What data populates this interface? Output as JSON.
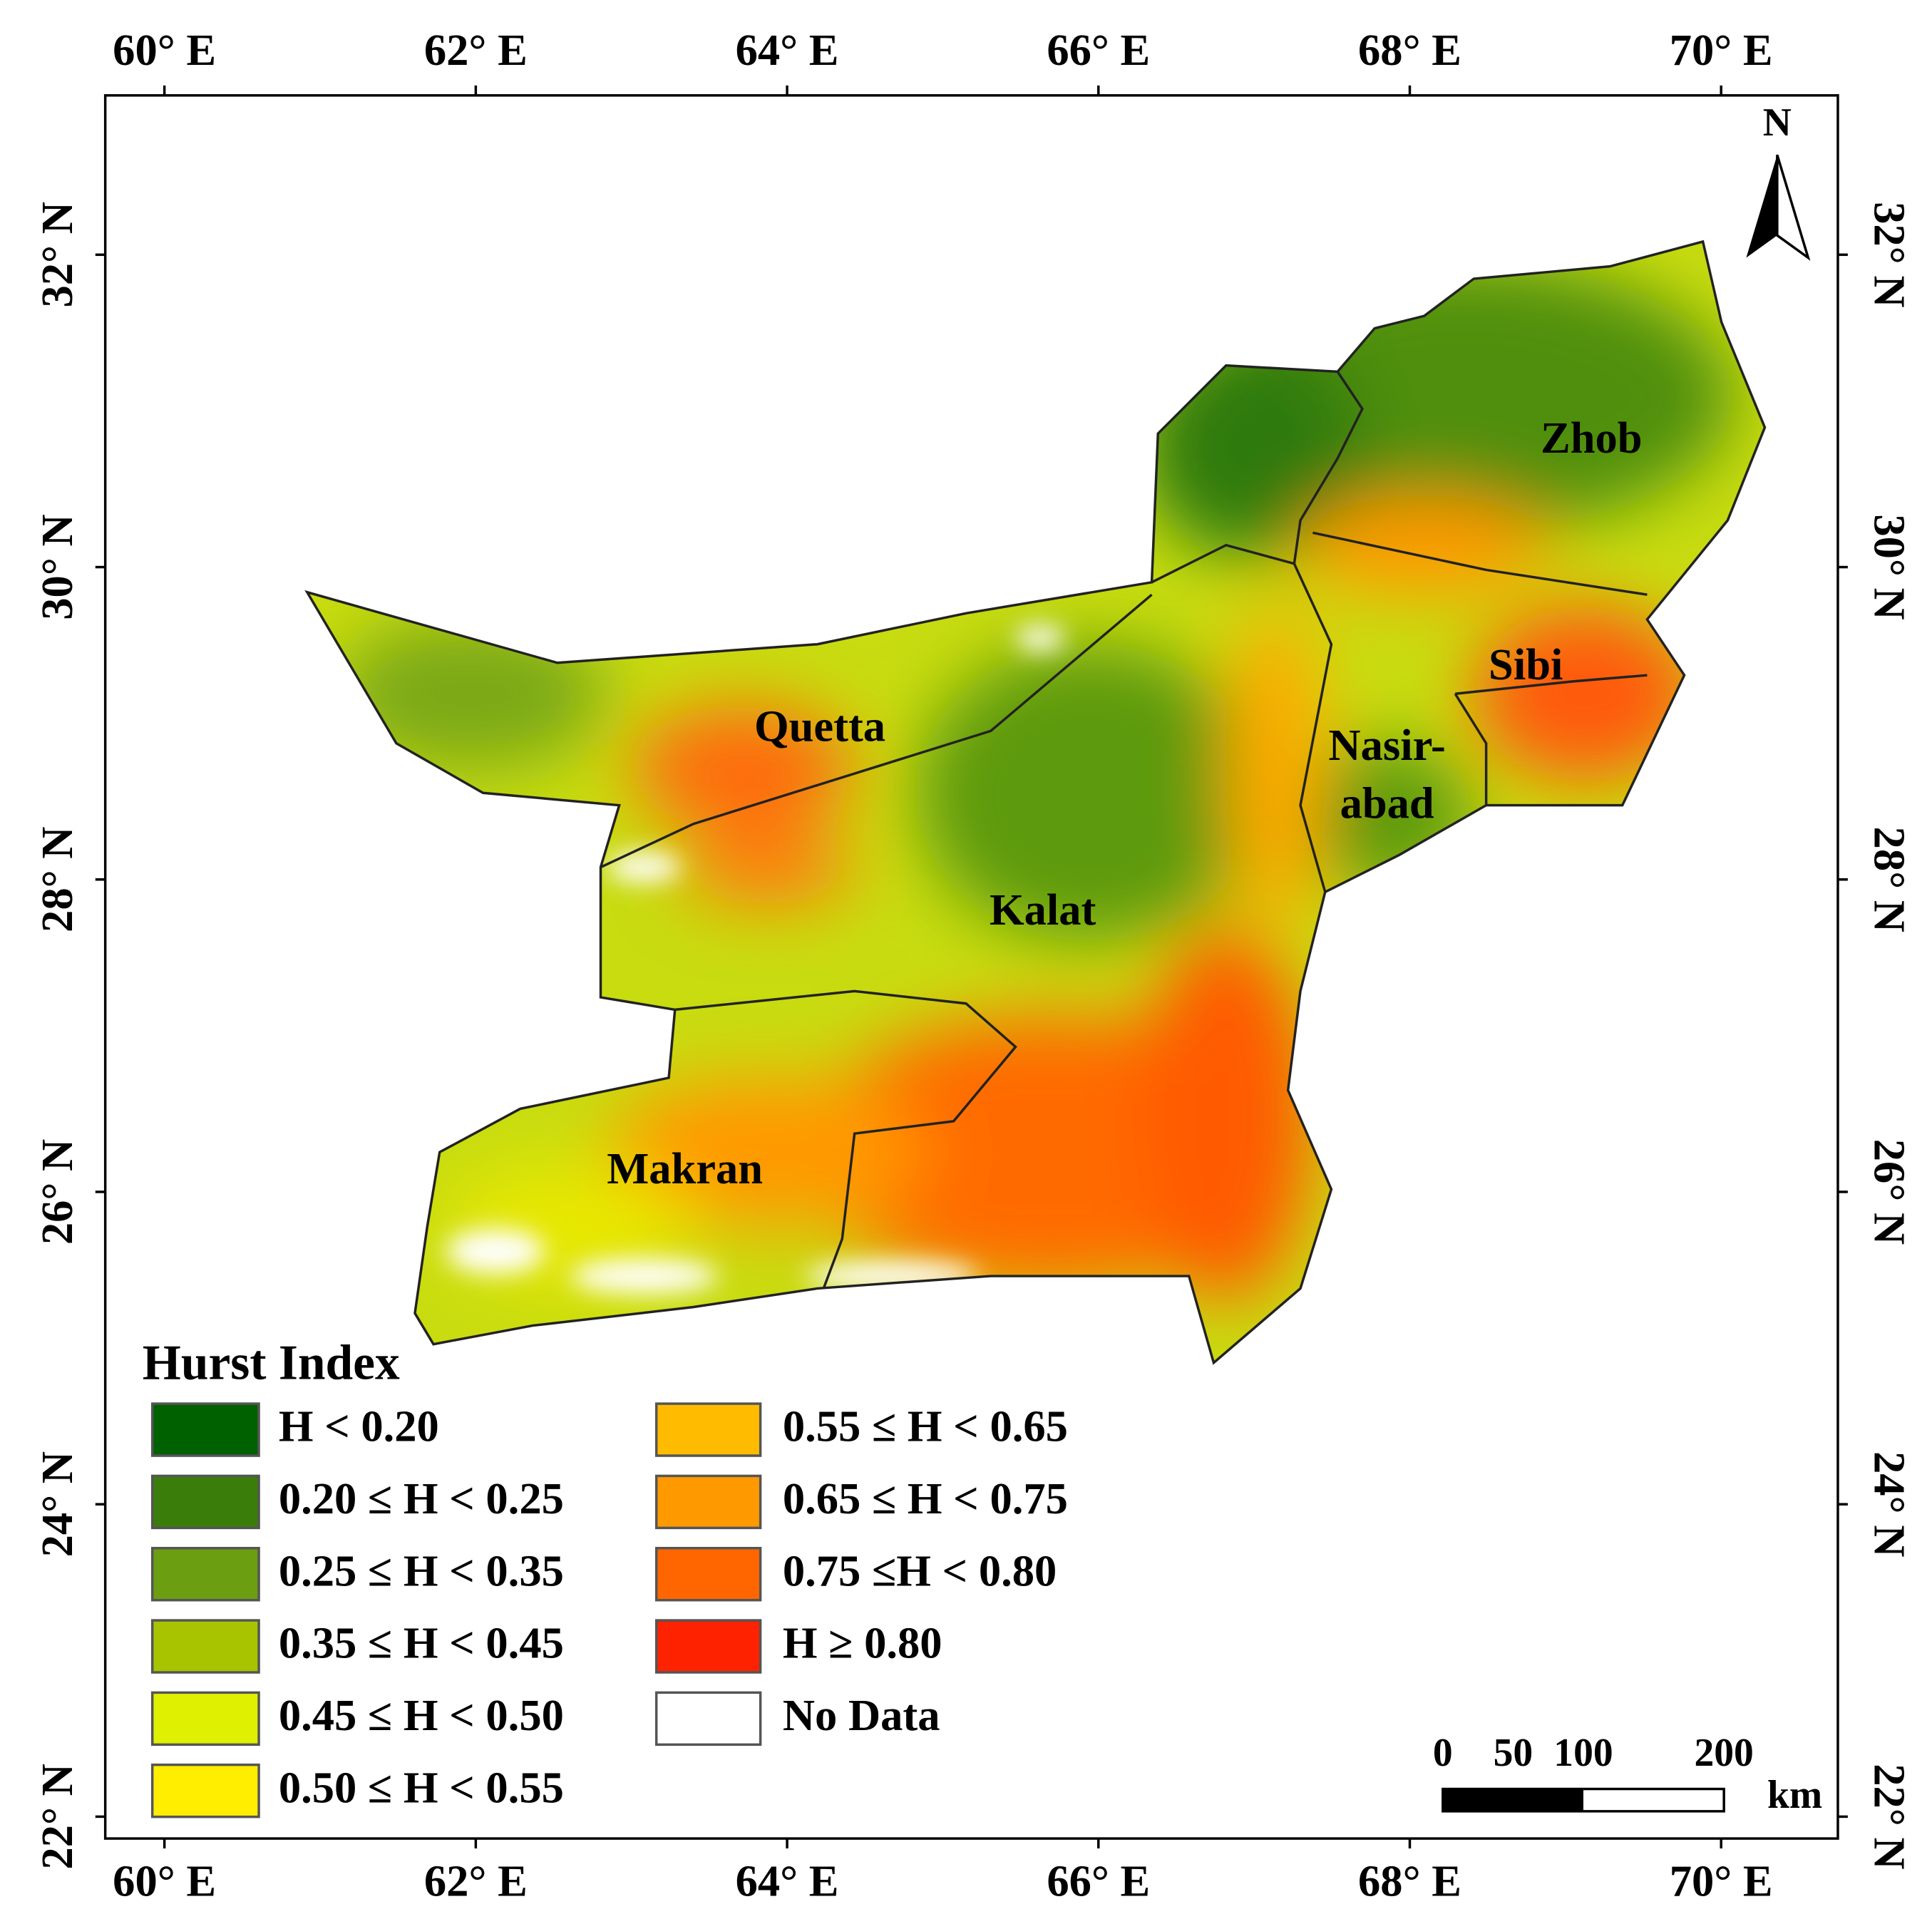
{
  "map": {
    "type": "map",
    "xlim": [
      59.62,
      70.75
    ],
    "ylim": [
      21.86,
      33.02
    ],
    "xticks": [
      {
        "value": 60,
        "label": "60° E"
      },
      {
        "value": 62,
        "label": "62° E"
      },
      {
        "value": 64,
        "label": "64° E"
      },
      {
        "value": 66,
        "label": "66° E"
      },
      {
        "value": 68,
        "label": "68° E"
      },
      {
        "value": 70,
        "label": "70° E"
      }
    ],
    "yticks": [
      {
        "value": 22,
        "label": "22° N"
      },
      {
        "value": 24,
        "label": "24° N"
      },
      {
        "value": 26,
        "label": "26° N"
      },
      {
        "value": 28,
        "label": "28° N"
      },
      {
        "value": 30,
        "label": "30° N"
      },
      {
        "value": 32,
        "label": "32° N"
      }
    ],
    "regions": [
      [
        "Quetta"
      ],
      [
        "Kalat"
      ],
      [
        "Makran"
      ],
      [
        "Zhob"
      ],
      [
        "Sibi"
      ],
      [
        "Nasir-",
        "abad"
      ]
    ],
    "north": "N",
    "legend": {
      "title": "Hurst Index",
      "items": [
        {
          "label": "H < 0.20",
          "color": "#006100"
        },
        {
          "label": "0.20 ≤ H < 0.25",
          "color": "#3a7d0a"
        },
        {
          "label": "0.25 ≤ H < 0.35",
          "color": "#6b9e10"
        },
        {
          "label": "0.35 ≤ H < 0.45",
          "color": "#a8c300"
        },
        {
          "label": "0.45 ≤ H < 0.50",
          "color": "#dff000"
        },
        {
          "label": "0.50 ≤ H < 0.55",
          "color": "#ffee00"
        },
        {
          "label": "0.55 ≤ H < 0.65",
          "color": "#ffbb00"
        },
        {
          "label": "0.65 ≤ H < 0.75",
          "color": "#ff9900"
        },
        {
          "label": "0.75 ≤H < 0.80",
          "color": "#ff6600"
        },
        {
          "label": "H ≥ 0.80",
          "color": "#ff2200"
        },
        {
          "label": "No Data",
          "color": "#ffffff"
        }
      ]
    },
    "scale_bar": {
      "ticks": [
        0,
        50,
        100,
        200
      ],
      "unit": "km"
    }
  }
}
